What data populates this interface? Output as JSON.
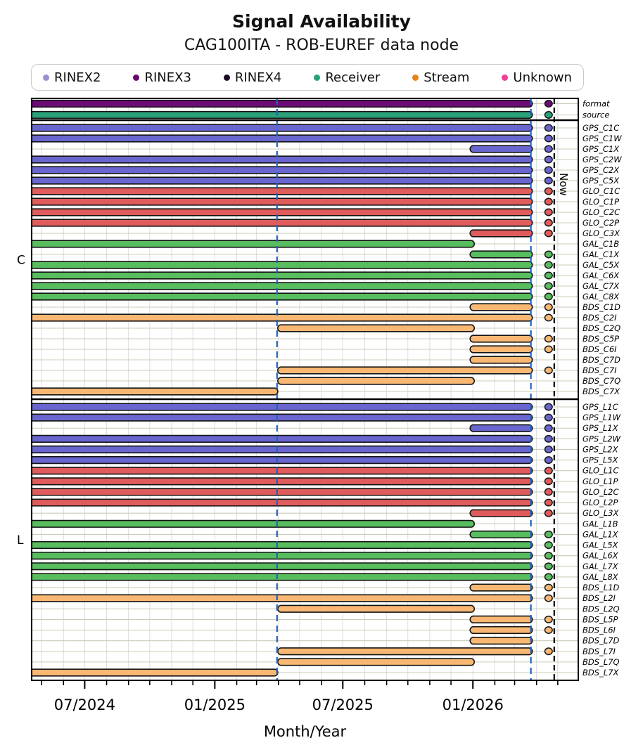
{
  "header": {
    "title": "Signal Availability",
    "subtitle": "CAG100ITA - ROB-EUREF data node"
  },
  "legend": {
    "items": [
      {
        "label": "RINEX2",
        "color": "#9793d2"
      },
      {
        "label": "RINEX3",
        "color": "#650a6e"
      },
      {
        "label": "RINEX4",
        "color": "#1c0b24"
      },
      {
        "label": "Receiver",
        "color": "#2aa179"
      },
      {
        "label": "Stream",
        "color": "#e8821f"
      },
      {
        "label": "Unknown",
        "color": "#f23e96"
      }
    ]
  },
  "chart_data": {
    "type": "gantt-timeline",
    "title": "Signal Availability",
    "subtitle": "CAG100ITA - ROB-EUREF data node",
    "xlabel": "Month/Year",
    "x_domain": [
      "2024-04-17",
      "2026-05-30"
    ],
    "x_major_ticks": [
      {
        "date": "2024-07-01",
        "label": "07/2024"
      },
      {
        "date": "2025-01-01",
        "label": "01/2025"
      },
      {
        "date": "2025-07-01",
        "label": "07/2025"
      },
      {
        "date": "2026-01-01",
        "label": "01/2026"
      }
    ],
    "x_minor_tick_interval": "month",
    "grid": {
      "vertical": "monthly",
      "horizontal": "per-row"
    },
    "now_line": {
      "date": "2026-04-26",
      "label": "Now"
    },
    "reference_lines": [
      {
        "date": "2025-03-30",
        "color": "#1d62c4"
      },
      {
        "date": "2026-03-24",
        "color": "#1d62c4"
      }
    ],
    "now_dot_date": "2026-04-18",
    "colors": {
      "GPS": "#6a66cf",
      "GLO": "#e05c5c",
      "GAL": "#58bd5e",
      "BDS": "#f8b873",
      "format": "#6b0b75",
      "source": "#2aa179"
    },
    "groups": [
      {
        "label": "",
        "rows": [
          {
            "label": "format",
            "color": "format",
            "start": "2024-04-17",
            "end": "2026-03-26",
            "dot": true
          },
          {
            "label": "source",
            "color": "source",
            "start": "2024-04-17",
            "end": "2026-03-26",
            "dot": true
          }
        ]
      },
      {
        "label": "C",
        "rows": [
          {
            "label": "GPS_C1C",
            "color": "GPS",
            "start": "2024-04-17",
            "end": "2026-03-26",
            "dot": true
          },
          {
            "label": "GPS_C1W",
            "color": "GPS",
            "start": "2024-04-17",
            "end": "2026-03-26",
            "dot": true
          },
          {
            "label": "GPS_C1X",
            "color": "GPS",
            "start": "2025-12-28",
            "end": "2026-03-26",
            "dot": true
          },
          {
            "label": "GPS_C2W",
            "color": "GPS",
            "start": "2024-04-17",
            "end": "2026-03-26",
            "dot": true
          },
          {
            "label": "GPS_C2X",
            "color": "GPS",
            "start": "2024-04-17",
            "end": "2026-03-26",
            "dot": true
          },
          {
            "label": "GPS_C5X",
            "color": "GPS",
            "start": "2024-04-17",
            "end": "2026-03-26",
            "dot": true
          },
          {
            "label": "GLO_C1C",
            "color": "GLO",
            "start": "2024-04-17",
            "end": "2026-03-26",
            "dot": true
          },
          {
            "label": "GLO_C1P",
            "color": "GLO",
            "start": "2024-04-17",
            "end": "2026-03-26",
            "dot": true
          },
          {
            "label": "GLO_C2C",
            "color": "GLO",
            "start": "2024-04-17",
            "end": "2026-03-26",
            "dot": true
          },
          {
            "label": "GLO_C2P",
            "color": "GLO",
            "start": "2024-04-17",
            "end": "2026-03-26",
            "dot": true
          },
          {
            "label": "GLO_C3X",
            "color": "GLO",
            "start": "2025-12-28",
            "end": "2026-03-26",
            "dot": true
          },
          {
            "label": "GAL_C1B",
            "color": "GAL",
            "start": "2024-04-17",
            "end": "2026-01-03",
            "dot": false
          },
          {
            "label": "GAL_C1X",
            "color": "GAL",
            "start": "2025-12-28",
            "end": "2026-03-26",
            "dot": true
          },
          {
            "label": "GAL_C5X",
            "color": "GAL",
            "start": "2024-04-17",
            "end": "2026-03-26",
            "dot": true
          },
          {
            "label": "GAL_C6X",
            "color": "GAL",
            "start": "2024-04-17",
            "end": "2026-03-26",
            "dot": true
          },
          {
            "label": "GAL_C7X",
            "color": "GAL",
            "start": "2024-04-17",
            "end": "2026-03-26",
            "dot": true
          },
          {
            "label": "GAL_C8X",
            "color": "GAL",
            "start": "2024-04-17",
            "end": "2026-03-26",
            "dot": true
          },
          {
            "label": "BDS_C1D",
            "color": "BDS",
            "start": "2025-12-28",
            "end": "2026-03-26",
            "dot": true
          },
          {
            "label": "BDS_C2I",
            "color": "BDS",
            "start": "2024-04-17",
            "end": "2026-03-26",
            "dot": true
          },
          {
            "label": "BDS_C2Q",
            "color": "BDS",
            "start": "2025-03-31",
            "end": "2026-01-03",
            "dot": false
          },
          {
            "label": "BDS_C5P",
            "color": "BDS",
            "start": "2025-12-28",
            "end": "2026-03-26",
            "dot": true
          },
          {
            "label": "BDS_C6I",
            "color": "BDS",
            "start": "2025-12-28",
            "end": "2026-03-26",
            "dot": true
          },
          {
            "label": "BDS_C7D",
            "color": "BDS",
            "start": "2025-12-28",
            "end": "2026-03-26",
            "dot": false
          },
          {
            "label": "BDS_C7I",
            "color": "BDS",
            "start": "2025-03-31",
            "end": "2026-03-26",
            "dot": true
          },
          {
            "label": "BDS_C7Q",
            "color": "BDS",
            "start": "2025-03-31",
            "end": "2026-01-03",
            "dot": false
          },
          {
            "label": "BDS_C7X",
            "color": "BDS",
            "start": "2024-04-17",
            "end": "2025-03-31",
            "dot": false
          }
        ]
      },
      {
        "label": "L",
        "rows": [
          {
            "label": "GPS_L1C",
            "color": "GPS",
            "start": "2024-04-17",
            "end": "2026-03-26",
            "dot": true
          },
          {
            "label": "GPS_L1W",
            "color": "GPS",
            "start": "2024-04-17",
            "end": "2026-03-26",
            "dot": true
          },
          {
            "label": "GPS_L1X",
            "color": "GPS",
            "start": "2025-12-28",
            "end": "2026-03-26",
            "dot": true
          },
          {
            "label": "GPS_L2W",
            "color": "GPS",
            "start": "2024-04-17",
            "end": "2026-03-26",
            "dot": true
          },
          {
            "label": "GPS_L2X",
            "color": "GPS",
            "start": "2024-04-17",
            "end": "2026-03-26",
            "dot": true
          },
          {
            "label": "GPS_L5X",
            "color": "GPS",
            "start": "2024-04-17",
            "end": "2026-03-26",
            "dot": true
          },
          {
            "label": "GLO_L1C",
            "color": "GLO",
            "start": "2024-04-17",
            "end": "2026-03-26",
            "dot": true
          },
          {
            "label": "GLO_L1P",
            "color": "GLO",
            "start": "2024-04-17",
            "end": "2026-03-26",
            "dot": true
          },
          {
            "label": "GLO_L2C",
            "color": "GLO",
            "start": "2024-04-17",
            "end": "2026-03-26",
            "dot": true
          },
          {
            "label": "GLO_L2P",
            "color": "GLO",
            "start": "2024-04-17",
            "end": "2026-03-26",
            "dot": true
          },
          {
            "label": "GLO_L3X",
            "color": "GLO",
            "start": "2025-12-28",
            "end": "2026-03-26",
            "dot": true
          },
          {
            "label": "GAL_L1B",
            "color": "GAL",
            "start": "2024-04-17",
            "end": "2026-01-03",
            "dot": false
          },
          {
            "label": "GAL_L1X",
            "color": "GAL",
            "start": "2025-12-28",
            "end": "2026-03-26",
            "dot": true
          },
          {
            "label": "GAL_L5X",
            "color": "GAL",
            "start": "2024-04-17",
            "end": "2026-03-26",
            "dot": true
          },
          {
            "label": "GAL_L6X",
            "color": "GAL",
            "start": "2024-04-17",
            "end": "2026-03-26",
            "dot": true
          },
          {
            "label": "GAL_L7X",
            "color": "GAL",
            "start": "2024-04-17",
            "end": "2026-03-26",
            "dot": true
          },
          {
            "label": "GAL_L8X",
            "color": "GAL",
            "start": "2024-04-17",
            "end": "2026-03-26",
            "dot": true
          },
          {
            "label": "BDS_L1D",
            "color": "BDS",
            "start": "2025-12-28",
            "end": "2026-03-26",
            "dot": true
          },
          {
            "label": "BDS_L2I",
            "color": "BDS",
            "start": "2024-04-17",
            "end": "2026-03-26",
            "dot": true
          },
          {
            "label": "BDS_L2Q",
            "color": "BDS",
            "start": "2025-03-31",
            "end": "2026-01-03",
            "dot": false
          },
          {
            "label": "BDS_L5P",
            "color": "BDS",
            "start": "2025-12-28",
            "end": "2026-03-26",
            "dot": true
          },
          {
            "label": "BDS_L6I",
            "color": "BDS",
            "start": "2025-12-28",
            "end": "2026-03-26",
            "dot": true
          },
          {
            "label": "BDS_L7D",
            "color": "BDS",
            "start": "2025-12-28",
            "end": "2026-03-26",
            "dot": false
          },
          {
            "label": "BDS_L7I",
            "color": "BDS",
            "start": "2025-03-31",
            "end": "2026-03-26",
            "dot": true
          },
          {
            "label": "BDS_L7Q",
            "color": "BDS",
            "start": "2025-03-31",
            "end": "2026-01-03",
            "dot": false
          },
          {
            "label": "BDS_L7X",
            "color": "BDS",
            "start": "2024-04-17",
            "end": "2025-03-31",
            "dot": false
          }
        ]
      }
    ]
  }
}
